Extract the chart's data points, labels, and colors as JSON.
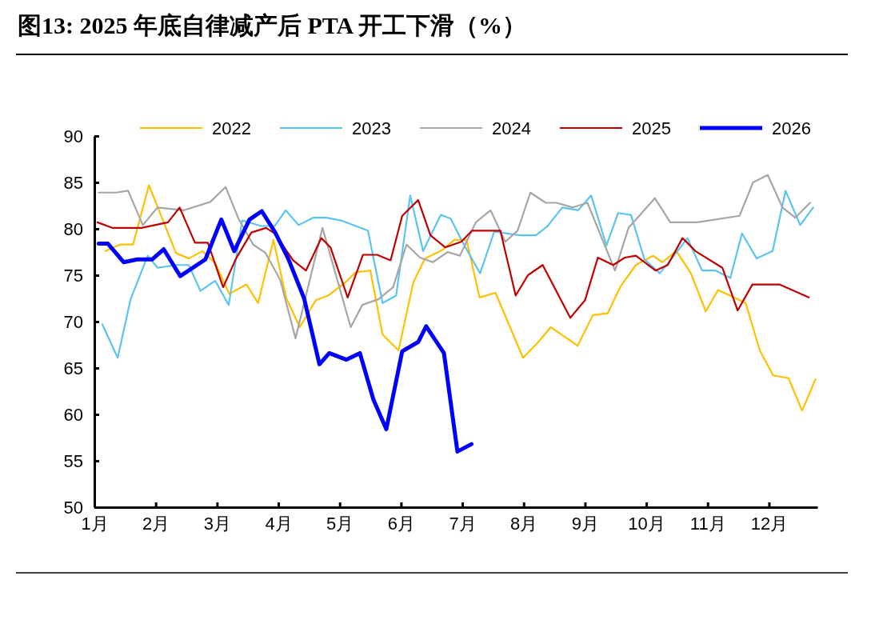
{
  "chart_data": {
    "type": "line",
    "title": "图13:  2025 年底自律减产后 PTA 开工下滑（%）",
    "xlim": [
      1,
      12.79
    ],
    "xticks": [
      {
        "value": 1,
        "label": "1月"
      },
      {
        "value": 2,
        "label": "2月"
      },
      {
        "value": 3,
        "label": "3月"
      },
      {
        "value": 4,
        "label": "4月"
      },
      {
        "value": 5,
        "label": "5月"
      },
      {
        "value": 6,
        "label": "6月"
      },
      {
        "value": 7,
        "label": "7月"
      },
      {
        "value": 8,
        "label": "8月"
      },
      {
        "value": 9,
        "label": "9月"
      },
      {
        "value": 10,
        "label": "10月"
      },
      {
        "value": 11,
        "label": "11月"
      },
      {
        "value": 12,
        "label": "12月"
      }
    ],
    "ylim": [
      50,
      90
    ],
    "yticks": [
      50,
      55,
      60,
      65,
      70,
      75,
      80,
      85,
      90
    ],
    "grid": false,
    "legend": "top",
    "marker": "none",
    "line_style": "solid",
    "series": [
      {
        "name": "2022",
        "color": "#ffc000",
        "x": [
          1.18,
          1.42,
          1.63,
          1.89,
          2.33,
          2.54,
          2.76,
          2.97,
          3.2,
          3.48,
          3.67,
          3.92,
          4.13,
          4.35,
          4.61,
          4.81,
          5.07,
          5.26,
          5.5,
          5.7,
          5.96,
          6.2,
          6.39,
          6.67,
          6.87,
          7.07,
          7.28,
          7.54,
          7.99,
          8.24,
          8.44,
          8.88,
          9.13,
          9.37,
          9.58,
          9.83,
          10.11,
          10.26,
          10.49,
          10.72,
          10.97,
          11.17,
          11.62,
          11.85,
          12.07,
          12.32,
          12.54,
          12.76
        ],
        "values": [
          77.6,
          78.3,
          78.3,
          84.7,
          77.4,
          76.8,
          77.6,
          76.3,
          73,
          74,
          72,
          78.8,
          72.5,
          69.4,
          72.3,
          72.8,
          74.1,
          75.3,
          75.5,
          68.6,
          66.9,
          74.2,
          76.8,
          77.7,
          78.8,
          78.8,
          72.6,
          73.1,
          66.1,
          67.8,
          69.4,
          67.4,
          70.7,
          70.9,
          73.8,
          76.1,
          77.1,
          76.4,
          77.6,
          75.3,
          71.1,
          73.4,
          72,
          66.9,
          64.2,
          63.9,
          60.4,
          63.8
        ]
      },
      {
        "name": "2023",
        "color": "#5bc4f0",
        "x": [
          1.13,
          1.38,
          1.59,
          1.87,
          2.03,
          2.33,
          2.54,
          2.73,
          2.97,
          3.19,
          3.41,
          3.72,
          3.94,
          4.12,
          4.33,
          4.57,
          4.78,
          5.02,
          5.46,
          5.7,
          5.92,
          6.15,
          6.36,
          6.65,
          6.81,
          7,
          7.29,
          7.52,
          7.94,
          8.2,
          8.39,
          8.63,
          8.89,
          9.1,
          9.35,
          9.54,
          9.75,
          9.97,
          10.22,
          10.45,
          10.67,
          10.91,
          11.13,
          11.37,
          11.56,
          11.8,
          12.06,
          12.27,
          12.51,
          12.72
        ],
        "values": [
          69.7,
          66.1,
          72.4,
          77.1,
          75.8,
          76.1,
          76.1,
          73.3,
          74.4,
          71.8,
          80.9,
          80.3,
          80.3,
          82,
          80.4,
          81.2,
          81.2,
          80.9,
          79.8,
          72,
          72.8,
          83.6,
          77.6,
          81.5,
          81.1,
          78.6,
          75.2,
          79.7,
          79.3,
          79.3,
          80.3,
          82.3,
          82,
          83.6,
          78.2,
          81.7,
          81.5,
          76.7,
          75.2,
          77.1,
          79,
          75.5,
          75.5,
          74.7,
          79.5,
          76.8,
          77.6,
          84.1,
          80.4,
          82.3
        ]
      },
      {
        "name": "2024",
        "color": "#a6a6a6",
        "x": [
          1.07,
          1.35,
          1.55,
          1.79,
          2.03,
          2.46,
          2.89,
          3.14,
          3.35,
          3.59,
          3.79,
          4.03,
          4.28,
          4.72,
          5.18,
          5.37,
          5.63,
          5.87,
          6.09,
          6.31,
          6.52,
          6.76,
          6.96,
          7.22,
          7.46,
          7.7,
          7.9,
          8.11,
          8.36,
          8.54,
          8.8,
          9.04,
          9.49,
          9.71,
          10.14,
          10.39,
          10.83,
          11.52,
          11.74,
          11.98,
          12.22,
          12.43,
          12.67
        ],
        "values": [
          83.9,
          83.9,
          84.1,
          80.4,
          82.3,
          82,
          82.9,
          84.5,
          81.1,
          78.3,
          77.4,
          74.5,
          68.2,
          80.1,
          69.4,
          71.8,
          72.4,
          73.7,
          78.3,
          76.9,
          76.4,
          77.5,
          77.1,
          80.7,
          82,
          78.6,
          79.8,
          83.9,
          82.8,
          82.8,
          82.3,
          82.8,
          75.5,
          80.1,
          83.3,
          80.7,
          80.7,
          81.4,
          85,
          85.8,
          82.3,
          81.2,
          82.8
        ]
      },
      {
        "name": "2025",
        "color": "#c00000",
        "x": [
          1.05,
          1.29,
          1.77,
          2.2,
          2.39,
          2.64,
          2.85,
          3.1,
          3.31,
          3.56,
          3.8,
          3.94,
          4.24,
          4.45,
          4.7,
          4.85,
          5.13,
          5.38,
          5.61,
          5.83,
          6.02,
          6.28,
          6.48,
          6.72,
          6.98,
          7.16,
          7.62,
          7.87,
          8.07,
          8.31,
          8.76,
          9,
          9.21,
          9.46,
          9.65,
          9.83,
          10.15,
          10.35,
          10.59,
          10.8,
          11.24,
          11.49,
          11.73,
          12.17,
          12.65
        ],
        "values": [
          80.7,
          80.1,
          80.1,
          80.7,
          82.3,
          78.5,
          78.5,
          73.7,
          76.8,
          79.6,
          80.1,
          79.5,
          76.6,
          75.5,
          79,
          78,
          72.6,
          77.2,
          77.2,
          76.6,
          81.4,
          83.1,
          79.3,
          78,
          78.6,
          79.8,
          79.8,
          72.8,
          75,
          76.1,
          70.4,
          72.3,
          76.9,
          76.1,
          76.9,
          77.1,
          75.5,
          76.1,
          79,
          77.6,
          75.8,
          71.2,
          74,
          74,
          72.6
        ]
      },
      {
        "name": "2026",
        "color": "#0000ff",
        "x": [
          1.07,
          1.22,
          1.48,
          1.7,
          1.94,
          2.13,
          2.4,
          2.81,
          3.07,
          3.28,
          3.53,
          3.73,
          3.94,
          4.16,
          4.42,
          4.67,
          4.83,
          5.11,
          5.33,
          5.55,
          5.76,
          6.02,
          6.28,
          6.41,
          6.7,
          6.92,
          7.15
        ],
        "values": [
          78.4,
          78.4,
          76.4,
          76.7,
          76.7,
          77.8,
          74.9,
          76.7,
          81,
          77.6,
          81,
          81.9,
          79.7,
          76.8,
          72.5,
          65.4,
          66.6,
          65.9,
          66.6,
          61.6,
          58.4,
          66.8,
          67.8,
          69.5,
          66.6,
          56,
          56.8
        ]
      }
    ]
  }
}
